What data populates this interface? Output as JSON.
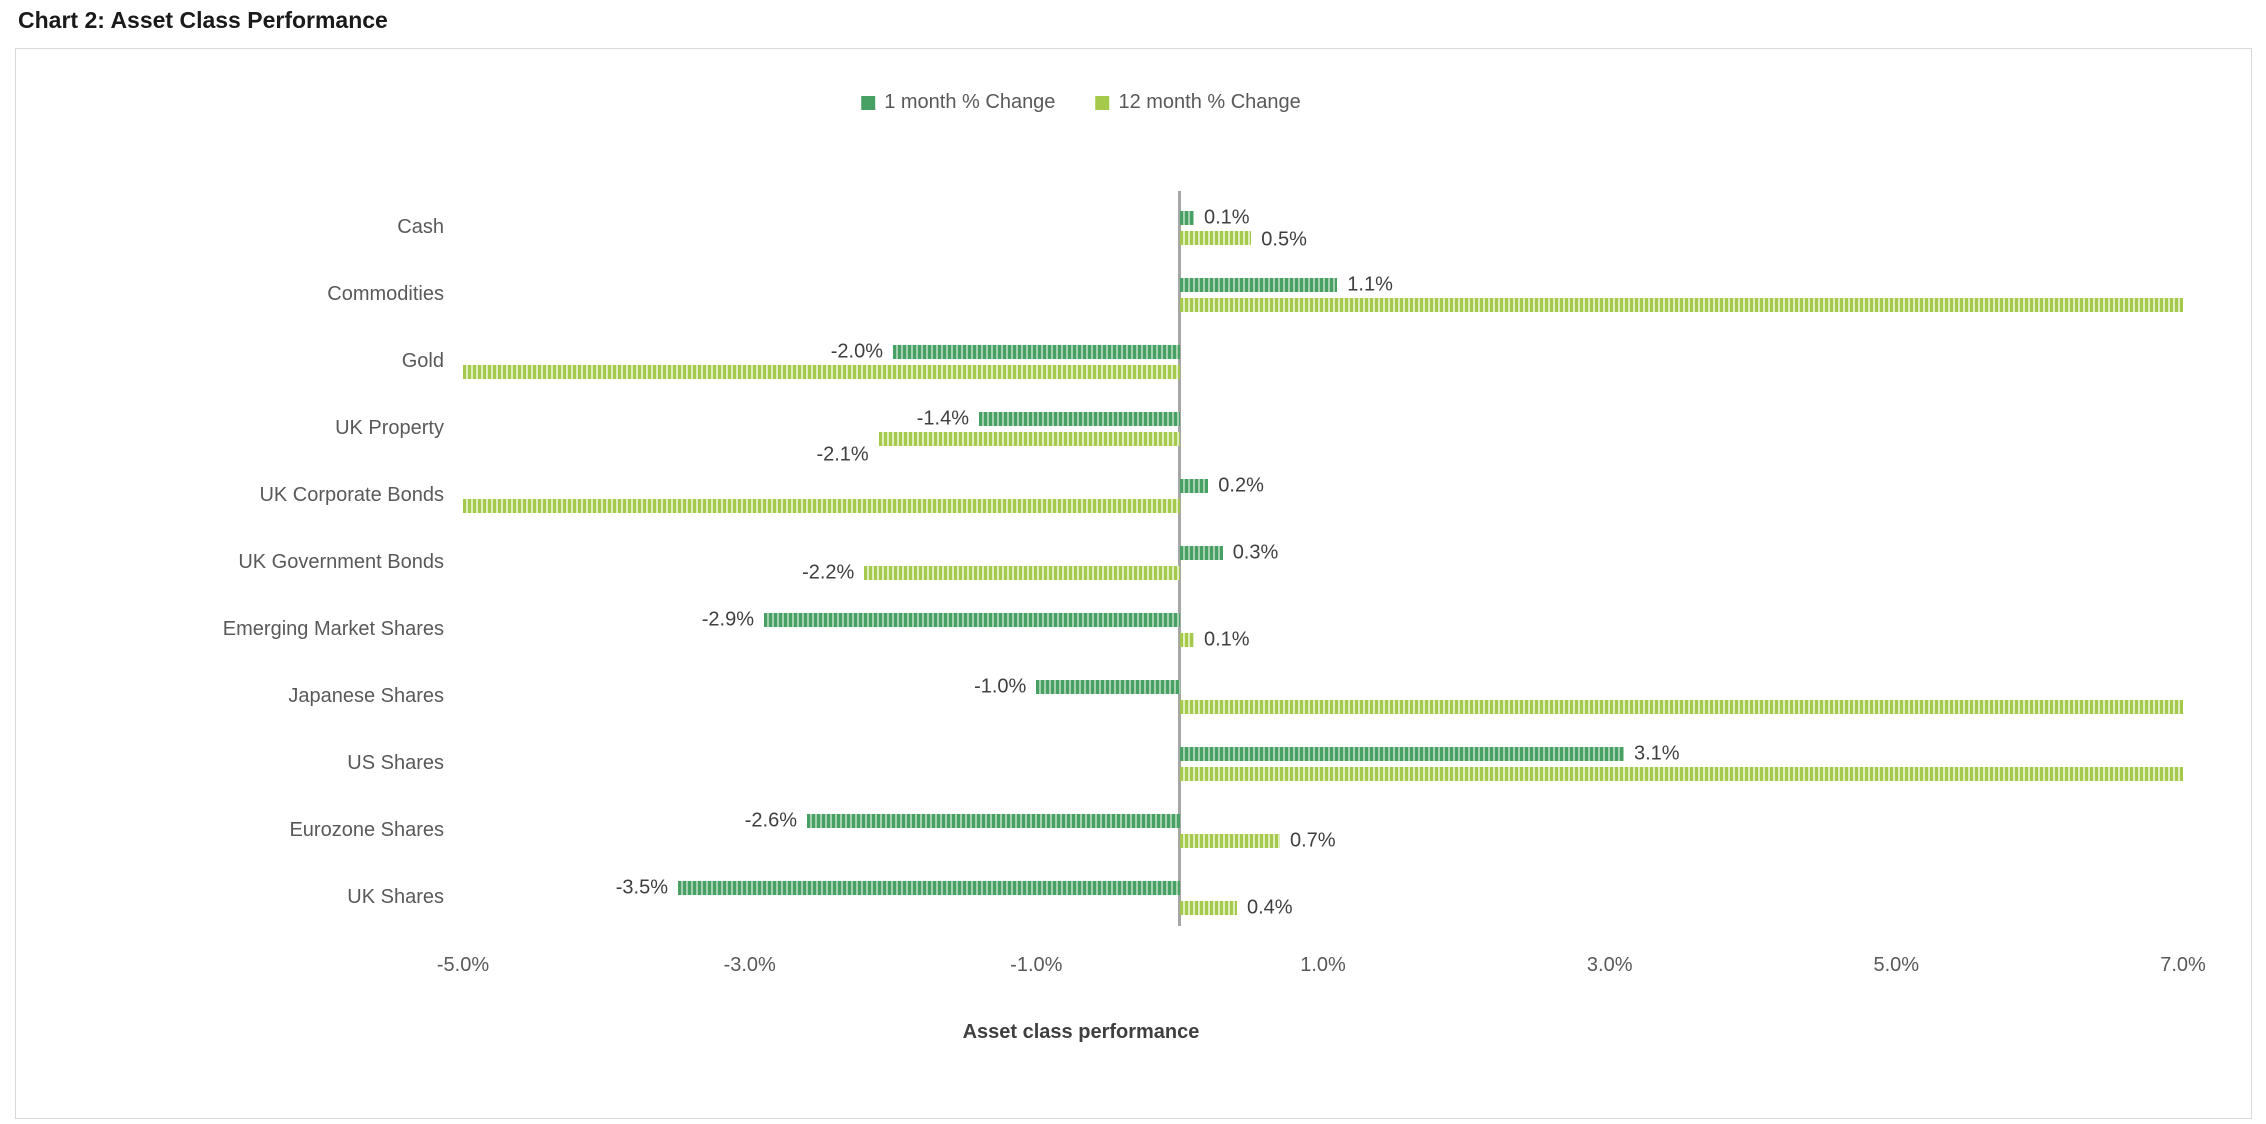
{
  "title": "Chart 2: Asset Class Performance",
  "colors": {
    "series1_green": "#47a164",
    "series1_stripe_tint": "#a6d0af",
    "series2_green": "#a5ca4b",
    "series2_stripe_tint": "#dfeec0",
    "axis_text": "#595959",
    "data_label_text": "#3f3f3f",
    "zero_axis_line": "#a6a6a6",
    "frame_border": "#d9d9d9"
  },
  "chart_data": {
    "type": "bar",
    "orientation": "horizontal",
    "title": "Chart 2: Asset Class Performance",
    "xlabel": "Asset class performance",
    "xlim": [
      -5,
      7
    ],
    "grid": false,
    "legend_position": "top-center",
    "categories": [
      "Cash",
      "Commodities",
      "Gold",
      "UK Property",
      "UK Corporate Bonds",
      "UK Government Bonds",
      "Emerging Market Shares",
      "Japanese Shares",
      "US Shares",
      "Eurozone Shares",
      "UK Shares"
    ],
    "series": [
      {
        "name": "1 month % Change",
        "color": "#47a164",
        "stripe_tint": "#a6d0af",
        "values": [
          0.1,
          1.1,
          -2.0,
          -1.4,
          0.2,
          0.3,
          -2.9,
          -1.0,
          3.1,
          -2.6,
          -3.5
        ],
        "labels": [
          "0.1%",
          "1.1%",
          "-2.0%",
          "-1.4%",
          "0.2%",
          "0.3%",
          "-2.9%",
          "-1.0%",
          "3.1%",
          "-2.6%",
          "-3.5%"
        ],
        "clipped_at_axis": [
          false,
          false,
          false,
          false,
          false,
          false,
          false,
          false,
          false,
          false,
          false
        ],
        "label_dy": [
          0,
          0,
          0,
          0,
          0,
          0,
          0,
          0,
          0,
          0,
          0
        ]
      },
      {
        "name": "12 month % Change",
        "color": "#a5ca4b",
        "stripe_tint": "#dfeec0",
        "values": [
          0.5,
          7.0,
          -5.0,
          -2.1,
          -5.0,
          -2.2,
          0.1,
          7.0,
          7.0,
          0.7,
          0.4
        ],
        "labels": [
          "0.5%",
          null,
          null,
          "-2.1%",
          null,
          "-2.2%",
          "0.1%",
          null,
          null,
          "0.7%",
          "0.4%"
        ],
        "clipped_at_axis": [
          false,
          true,
          true,
          false,
          true,
          false,
          false,
          true,
          true,
          false,
          false
        ],
        "label_dy": [
          2,
          0,
          0,
          16,
          0,
          0,
          0,
          0,
          0,
          0,
          0
        ]
      }
    ],
    "x_ticks": [
      {
        "label": "-5.0%",
        "value": -5
      },
      {
        "label": "-3.0%",
        "value": -3
      },
      {
        "label": "-1.0%",
        "value": -1
      },
      {
        "label": "1.0%",
        "value": 1
      },
      {
        "label": "3.0%",
        "value": 3
      },
      {
        "label": "5.0%",
        "value": 5
      },
      {
        "label": "7.0%",
        "value": 7
      }
    ]
  }
}
